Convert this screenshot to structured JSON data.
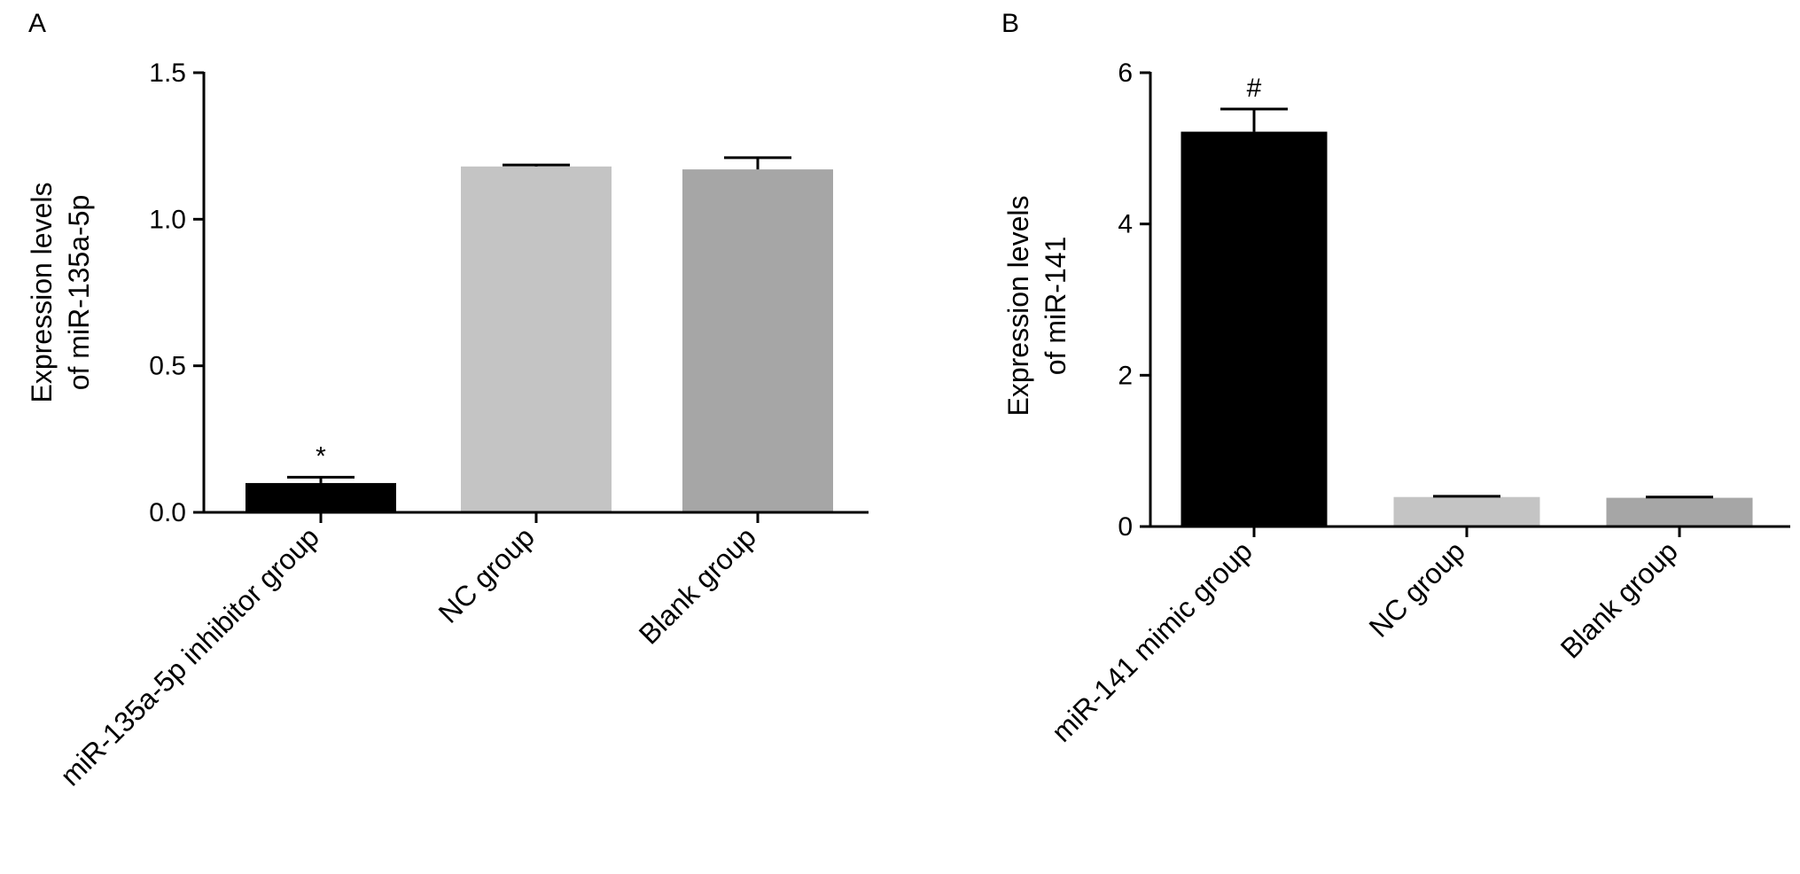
{
  "chart_data": [
    {
      "panel": "A",
      "type": "bar",
      "categories": [
        "miR-135a-5p inhibitor group",
        "NC group",
        "Blank group"
      ],
      "values": [
        0.1,
        1.18,
        1.17
      ],
      "errors": [
        0.02,
        0.005,
        0.04
      ],
      "colors": [
        "#000000",
        "#c4c4c4",
        "#a6a6a6"
      ],
      "annotations": [
        "*",
        "",
        ""
      ],
      "ylabel_lines": [
        "Expression levels",
        "of miR-135a-5p"
      ],
      "ylim": [
        0,
        1.5
      ],
      "yticks": [
        0.0,
        0.5,
        1.0,
        1.5
      ],
      "ytick_labels": [
        "0.0",
        "0.5",
        "1.0",
        "1.5"
      ],
      "grid": false
    },
    {
      "panel": "B",
      "type": "bar",
      "categories": [
        "miR-141 mimic group",
        "NC group",
        "Blank group"
      ],
      "values": [
        5.22,
        0.39,
        0.38
      ],
      "errors": [
        0.3,
        0.01,
        0.01
      ],
      "colors": [
        "#000000",
        "#c4c4c4",
        "#a6a6a6"
      ],
      "annotations": [
        "#",
        "",
        ""
      ],
      "ylabel_lines": [
        "Expression levels",
        "of  miR-141"
      ],
      "ylim": [
        0,
        6
      ],
      "yticks": [
        0,
        2,
        4,
        6
      ],
      "ytick_labels": [
        "0",
        "2",
        "4",
        "6"
      ],
      "grid": false
    }
  ]
}
